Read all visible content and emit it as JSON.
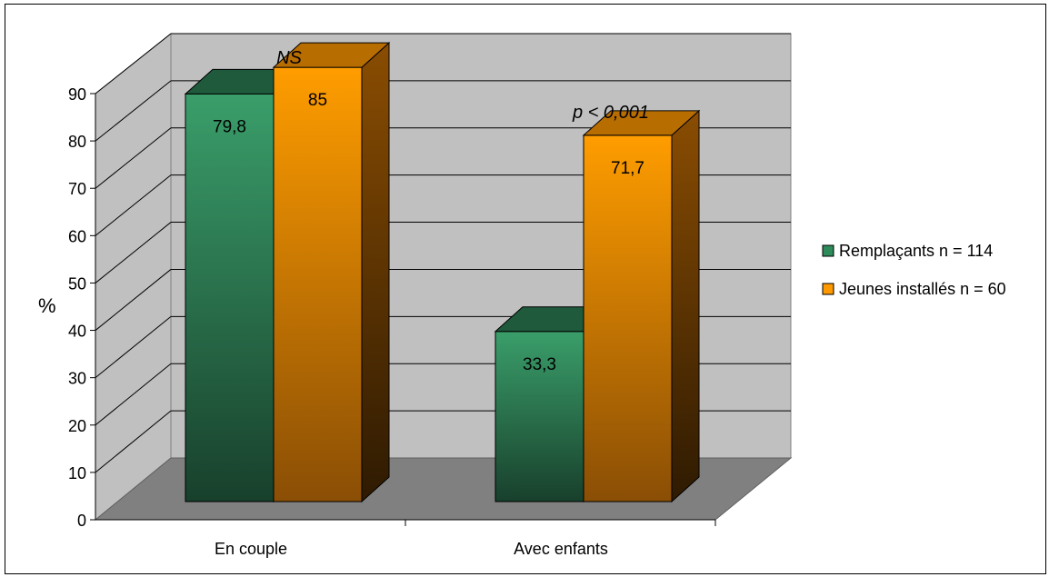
{
  "chart_data": {
    "type": "bar",
    "categories": [
      "En couple",
      "Avec enfants"
    ],
    "series": [
      {
        "name": "Remplaçants n = 114",
        "values": [
          79.8,
          33.3
        ],
        "labels": [
          "79,8",
          "33,3"
        ],
        "color": "#2e8b5a"
      },
      {
        "name": "Jeunes installés n = 60",
        "values": [
          85,
          71.7
        ],
        "labels": [
          "85",
          "71,7"
        ],
        "color": "#ff9900"
      }
    ],
    "annotations": [
      "NS",
      "p < 0,001"
    ],
    "ylabel": "%",
    "ylim": [
      0,
      90
    ],
    "yticks": [
      "0",
      "10",
      "20",
      "30",
      "40",
      "50",
      "60",
      "70",
      "80",
      "90"
    ],
    "grid": true,
    "legend_position": "right",
    "three_d": true
  }
}
